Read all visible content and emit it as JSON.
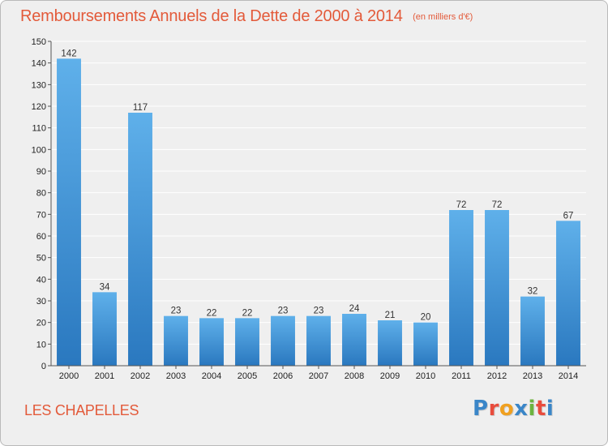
{
  "header": {
    "title": "Remboursements Annuels de la Dette de 2000 à 2014",
    "unit": "(en milliers d'€)"
  },
  "footer": {
    "commune": "LES CHAPELLES",
    "logo": {
      "letters": [
        "P",
        "r",
        "o",
        "x",
        "i",
        "t",
        "i"
      ],
      "colors": [
        "#3a86c8",
        "#e84c3d",
        "#f0a020",
        "#3a86c8",
        "#6cb33f",
        "#e84c3d",
        "#3a86c8"
      ]
    }
  },
  "colors": {
    "bar_top": "#5fb0ea",
    "bar_bottom": "#2a78bf",
    "title": "#e35a3a",
    "grid": "#ffffff",
    "plot_bg": "#efefef"
  },
  "chart_data": {
    "type": "bar",
    "title": "Remboursements Annuels de la Dette de 2000 à 2014",
    "subtitle": "(en milliers d'€)",
    "xlabel": "",
    "ylabel": "",
    "categories": [
      "2000",
      "2001",
      "2002",
      "2003",
      "2004",
      "2005",
      "2006",
      "2007",
      "2008",
      "2009",
      "2010",
      "2011",
      "2012",
      "2013",
      "2014"
    ],
    "values": [
      142,
      34,
      117,
      23,
      22,
      22,
      23,
      23,
      24,
      21,
      20,
      72,
      72,
      32,
      67
    ],
    "ylim": [
      0,
      150
    ],
    "yticks": [
      0,
      10,
      20,
      30,
      40,
      50,
      60,
      70,
      80,
      90,
      100,
      110,
      120,
      130,
      140,
      150
    ],
    "grid": "horizontal",
    "legend": "none"
  }
}
